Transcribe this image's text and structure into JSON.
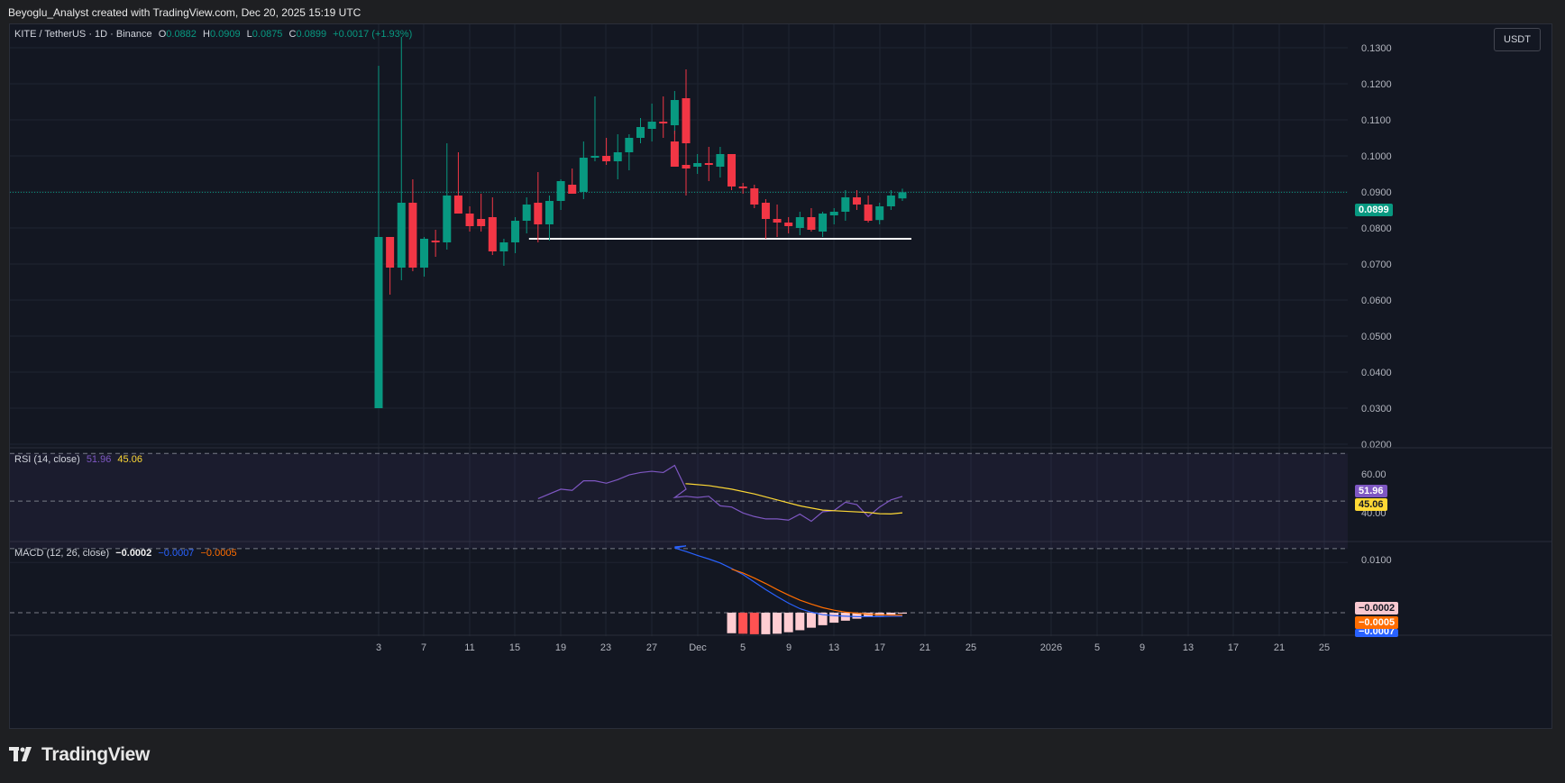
{
  "header": {
    "caption": "Beyoglu_Analyst created with TradingView.com, Dec 20, 2025 15:19 UTC"
  },
  "symbol": {
    "name": "KITE / TetherUS · 1D · Binance",
    "o_label": "O",
    "o": "0.0882",
    "h_label": "H",
    "h": "0.0909",
    "l_label": "L",
    "l": "0.0875",
    "c_label": "C",
    "c": "0.0899",
    "change": "+0.0017 (+1.93%)"
  },
  "unit_button": "USDT",
  "last_price_tag": "0.0899",
  "rsi": {
    "label": "RSI (14, close)",
    "value": "51.96",
    "ma": "45.06",
    "tick_label": "60.00",
    "tick_low": "40.00"
  },
  "macd": {
    "label": "MACD (12, 26, close)",
    "hist": "−0.0002",
    "macd": "−0.0007",
    "signal": "−0.0005",
    "tick_label": "0.0100",
    "tag_hist": "−0.0002",
    "tag_signal": "−0.0005",
    "tag_macd": "−0.0007"
  },
  "brand": "TradingView",
  "colors": {
    "up": "#089981",
    "down": "#f23645",
    "rsi": "#7e57c2",
    "rsi_ma": "#fdd835",
    "macd": "#2962ff",
    "signal": "#ff6d00",
    "bg": "#131722"
  },
  "chart_data": {
    "type": "candlestick",
    "x_ticks": [
      "3",
      "7",
      "11",
      "15",
      "19",
      "23",
      "27",
      "Dec",
      "5",
      "9",
      "13",
      "17",
      "21",
      "25",
      "2026",
      "5",
      "9",
      "13",
      "17",
      "21",
      "25"
    ],
    "y_ticks": [
      "0.1300",
      "0.1200",
      "0.1100",
      "0.1000",
      "0.0900",
      "0.0800",
      "0.0700",
      "0.0600",
      "0.0500",
      "0.0400",
      "0.0300",
      "0.0200"
    ],
    "ylim": [
      0.019,
      0.1365
    ],
    "support_level": 0.077,
    "candles": [
      {
        "date": "Nov 3",
        "o": 0.03,
        "h": 0.125,
        "l": 0.03,
        "c": 0.0775
      },
      {
        "date": "Nov 4",
        "o": 0.0775,
        "h": 0.0775,
        "l": 0.0615,
        "c": 0.069
      },
      {
        "date": "Nov 5",
        "o": 0.069,
        "h": 0.133,
        "l": 0.0655,
        "c": 0.087
      },
      {
        "date": "Nov 6",
        "o": 0.087,
        "h": 0.0935,
        "l": 0.068,
        "c": 0.069
      },
      {
        "date": "Nov 7",
        "o": 0.069,
        "h": 0.0775,
        "l": 0.0665,
        "c": 0.077
      },
      {
        "date": "Nov 8",
        "o": 0.0765,
        "h": 0.0795,
        "l": 0.072,
        "c": 0.076
      },
      {
        "date": "Nov 9",
        "o": 0.076,
        "h": 0.1035,
        "l": 0.074,
        "c": 0.089
      },
      {
        "date": "Nov 10",
        "o": 0.089,
        "h": 0.101,
        "l": 0.084,
        "c": 0.084
      },
      {
        "date": "Nov 11",
        "o": 0.084,
        "h": 0.086,
        "l": 0.079,
        "c": 0.0805
      },
      {
        "date": "Nov 12",
        "o": 0.0825,
        "h": 0.0895,
        "l": 0.079,
        "c": 0.0805
      },
      {
        "date": "Nov 13",
        "o": 0.083,
        "h": 0.0885,
        "l": 0.0725,
        "c": 0.0735
      },
      {
        "date": "Nov 14",
        "o": 0.0735,
        "h": 0.077,
        "l": 0.0695,
        "c": 0.076
      },
      {
        "date": "Nov 15",
        "o": 0.076,
        "h": 0.083,
        "l": 0.073,
        "c": 0.082
      },
      {
        "date": "Nov 16",
        "o": 0.082,
        "h": 0.0885,
        "l": 0.0785,
        "c": 0.0865
      },
      {
        "date": "Nov 17",
        "o": 0.087,
        "h": 0.0955,
        "l": 0.076,
        "c": 0.081
      },
      {
        "date": "Nov 18",
        "o": 0.081,
        "h": 0.089,
        "l": 0.0765,
        "c": 0.0875
      },
      {
        "date": "Nov 19",
        "o": 0.0875,
        "h": 0.0935,
        "l": 0.085,
        "c": 0.093
      },
      {
        "date": "Nov 20",
        "o": 0.092,
        "h": 0.0965,
        "l": 0.0895,
        "c": 0.0895
      },
      {
        "date": "Nov 21",
        "o": 0.09,
        "h": 0.104,
        "l": 0.088,
        "c": 0.0995
      },
      {
        "date": "Nov 22",
        "o": 0.0995,
        "h": 0.1165,
        "l": 0.0985,
        "c": 0.1
      },
      {
        "date": "Nov 23",
        "o": 0.1,
        "h": 0.105,
        "l": 0.0975,
        "c": 0.0985
      },
      {
        "date": "Nov 24",
        "o": 0.0985,
        "h": 0.106,
        "l": 0.0935,
        "c": 0.101
      },
      {
        "date": "Nov 25",
        "o": 0.101,
        "h": 0.106,
        "l": 0.096,
        "c": 0.105
      },
      {
        "date": "Nov 26",
        "o": 0.105,
        "h": 0.1105,
        "l": 0.1035,
        "c": 0.108
      },
      {
        "date": "Nov 27",
        "o": 0.1075,
        "h": 0.1145,
        "l": 0.104,
        "c": 0.1095
      },
      {
        "date": "Nov 28",
        "o": 0.1095,
        "h": 0.1165,
        "l": 0.105,
        "c": 0.109
      },
      {
        "date": "Nov 29",
        "o": 0.1085,
        "h": 0.118,
        "l": 0.106,
        "c": 0.1155
      },
      {
        "date": "Nov 30",
        "o": 0.116,
        "h": 0.124,
        "l": 0.102,
        "c": 0.1035
      },
      {
        "date": "Dec 1",
        "o": 0.104,
        "h": 0.107,
        "l": 0.097,
        "c": 0.097
      },
      {
        "date": "Dec 2",
        "o": 0.0975,
        "h": 0.1035,
        "l": 0.089,
        "c": 0.0965
      },
      {
        "date": "Dec 3",
        "o": 0.097,
        "h": 0.1005,
        "l": 0.095,
        "c": 0.098
      },
      {
        "date": "Dec 4",
        "o": 0.098,
        "h": 0.1025,
        "l": 0.093,
        "c": 0.0975
      },
      {
        "date": "Dec 5",
        "o": 0.097,
        "h": 0.1025,
        "l": 0.094,
        "c": 0.1005
      },
      {
        "date": "Dec 6",
        "o": 0.1005,
        "h": 0.1005,
        "l": 0.0905,
        "c": 0.0915
      },
      {
        "date": "Dec 7",
        "o": 0.0915,
        "h": 0.0925,
        "l": 0.0895,
        "c": 0.091
      },
      {
        "date": "Dec 8",
        "o": 0.091,
        "h": 0.092,
        "l": 0.0855,
        "c": 0.0865
      },
      {
        "date": "Dec 9",
        "o": 0.087,
        "h": 0.088,
        "l": 0.077,
        "c": 0.0825
      },
      {
        "date": "Dec 10",
        "o": 0.0825,
        "h": 0.0865,
        "l": 0.0775,
        "c": 0.0815
      },
      {
        "date": "Dec 11",
        "o": 0.0815,
        "h": 0.083,
        "l": 0.0785,
        "c": 0.0805
      },
      {
        "date": "Dec 12",
        "o": 0.08,
        "h": 0.0845,
        "l": 0.078,
        "c": 0.083
      },
      {
        "date": "Dec 13",
        "o": 0.083,
        "h": 0.0855,
        "l": 0.079,
        "c": 0.0795
      },
      {
        "date": "Dec 14",
        "o": 0.079,
        "h": 0.0845,
        "l": 0.0775,
        "c": 0.084
      },
      {
        "date": "Dec 15",
        "o": 0.0835,
        "h": 0.0855,
        "l": 0.081,
        "c": 0.0845
      },
      {
        "date": "Dec 16",
        "o": 0.0845,
        "h": 0.0905,
        "l": 0.082,
        "c": 0.0885
      },
      {
        "date": "Dec 17",
        "o": 0.0885,
        "h": 0.0905,
        "l": 0.085,
        "c": 0.0865
      },
      {
        "date": "Dec 18",
        "o": 0.0865,
        "h": 0.089,
        "l": 0.0815,
        "c": 0.082
      },
      {
        "date": "Dec 19",
        "o": 0.0822,
        "h": 0.087,
        "l": 0.081,
        "c": 0.086
      },
      {
        "date": "Dec 20",
        "o": 0.086,
        "h": 0.0905,
        "l": 0.085,
        "c": 0.089
      },
      {
        "date": "Dec 21",
        "o": 0.0882,
        "h": 0.0909,
        "l": 0.0875,
        "c": 0.0899
      }
    ],
    "rsi_series": [
      {
        "date": "Nov 17",
        "v": 51.0
      },
      {
        "date": "Nov 19",
        "v": 55.0
      },
      {
        "date": "Nov 20",
        "v": 54.5
      },
      {
        "date": "Nov 21",
        "v": 58.5
      },
      {
        "date": "Nov 22",
        "v": 58.5
      },
      {
        "date": "Nov 23",
        "v": 57.5
      },
      {
        "date": "Nov 24",
        "v": 59.0
      },
      {
        "date": "Nov 25",
        "v": 61.0
      },
      {
        "date": "Nov 26",
        "v": 62.0
      },
      {
        "date": "Nov 27",
        "v": 62.5
      },
      {
        "date": "Nov 28",
        "v": 62.0
      },
      {
        "date": "Nov 29",
        "v": 65.0
      },
      {
        "date": "Nov 30",
        "v": 55.0
      },
      {
        "date": "Dec 1",
        "v": 51.5
      },
      {
        "date": "Dec 2",
        "v": 52.0
      },
      {
        "date": "Dec 3",
        "v": 51.5
      },
      {
        "date": "Dec 4",
        "v": 52.0
      },
      {
        "date": "Dec 5",
        "v": 48.0
      },
      {
        "date": "Dec 6",
        "v": 47.5
      },
      {
        "date": "Dec 7",
        "v": 45.0
      },
      {
        "date": "Dec 8",
        "v": 43.5
      },
      {
        "date": "Dec 9",
        "v": 42.5
      },
      {
        "date": "Dec 10",
        "v": 42.5
      },
      {
        "date": "Dec 11",
        "v": 42.0
      },
      {
        "date": "Dec 12",
        "v": 44.5
      },
      {
        "date": "Dec 13",
        "v": 41.5
      },
      {
        "date": "Dec 14",
        "v": 45.5
      },
      {
        "date": "Dec 15",
        "v": 46.0
      },
      {
        "date": "Dec 16",
        "v": 49.5
      },
      {
        "date": "Dec 17",
        "v": 48.5
      },
      {
        "date": "Dec 18",
        "v": 43.5
      },
      {
        "date": "Dec 19",
        "v": 47.5
      },
      {
        "date": "Dec 20",
        "v": 50.5
      },
      {
        "date": "Dec 21",
        "v": 51.96
      }
    ],
    "rsi_ma_series": [
      {
        "date": "Nov 30",
        "v": 57.5
      },
      {
        "date": "Dec 2",
        "v": 57.3
      },
      {
        "date": "Dec 4",
        "v": 56.5
      },
      {
        "date": "Dec 6",
        "v": 55.0
      },
      {
        "date": "Dec 8",
        "v": 53.0
      },
      {
        "date": "Dec 10",
        "v": 50.5
      },
      {
        "date": "Dec 12",
        "v": 48.0
      },
      {
        "date": "Dec 14",
        "v": 46.2
      },
      {
        "date": "Dec 16",
        "v": 45.7
      },
      {
        "date": "Dec 18",
        "v": 45.2
      },
      {
        "date": "Dec 19",
        "v": 44.7
      },
      {
        "date": "Dec 20",
        "v": 44.6
      },
      {
        "date": "Dec 21",
        "v": 45.06
      }
    ],
    "rsi_ylim": [
      33,
      72
    ],
    "rsi_bands": [
      70,
      50,
      30
    ],
    "macd_series": [
      {
        "date": "Nov 29",
        "v": 0.0131
      },
      {
        "date": "Nov 30",
        "v": 0.0133
      },
      {
        "date": "Dec 1",
        "v": 0.0129
      },
      {
        "date": "Dec 2",
        "v": 0.0122
      },
      {
        "date": "Dec 3",
        "v": 0.0114
      },
      {
        "date": "Dec 4",
        "v": 0.0107
      },
      {
        "date": "Dec 5",
        "v": 0.0099
      },
      {
        "date": "Dec 6",
        "v": 0.0088
      },
      {
        "date": "Dec 7",
        "v": 0.0076
      },
      {
        "date": "Dec 8",
        "v": 0.0061
      },
      {
        "date": "Dec 9",
        "v": 0.0046
      },
      {
        "date": "Dec 10",
        "v": 0.0032
      },
      {
        "date": "Dec 11",
        "v": 0.0019
      },
      {
        "date": "Dec 12",
        "v": 0.0008
      },
      {
        "date": "Dec 13",
        "v": 0.0001
      },
      {
        "date": "Dec 14",
        "v": -0.0004
      },
      {
        "date": "Dec 15",
        "v": -0.0006
      },
      {
        "date": "Dec 16",
        "v": -0.0007
      },
      {
        "date": "Dec 17",
        "v": -0.0008
      },
      {
        "date": "Dec 18",
        "v": -0.0008
      },
      {
        "date": "Dec 19",
        "v": -0.0008
      },
      {
        "date": "Dec 20",
        "v": -0.0007
      },
      {
        "date": "Dec 21",
        "v": -0.0007
      }
    ],
    "signal_series": [
      {
        "date": "Dec 6",
        "v": 0.0087
      },
      {
        "date": "Dec 7",
        "v": 0.0079
      },
      {
        "date": "Dec 8",
        "v": 0.0069
      },
      {
        "date": "Dec 9",
        "v": 0.0058
      },
      {
        "date": "Dec 10",
        "v": 0.0046
      },
      {
        "date": "Dec 11",
        "v": 0.0035
      },
      {
        "date": "Dec 12",
        "v": 0.0025
      },
      {
        "date": "Dec 13",
        "v": 0.0017
      },
      {
        "date": "Dec 14",
        "v": 0.001
      },
      {
        "date": "Dec 15",
        "v": 0.0005
      },
      {
        "date": "Dec 16",
        "v": 0.0001
      },
      {
        "date": "Dec 17",
        "v": -0.0001
      },
      {
        "date": "Dec 18",
        "v": -0.0003
      },
      {
        "date": "Dec 19",
        "v": -0.0004
      },
      {
        "date": "Dec 20",
        "v": -0.0005
      },
      {
        "date": "Dec 21",
        "v": -0.0005
      }
    ],
    "macd_hist": [
      {
        "date": "Dec 6",
        "v": -0.0041
      },
      {
        "date": "Dec 7",
        "v": -0.0042
      },
      {
        "date": "Dec 8",
        "v": -0.0043
      },
      {
        "date": "Dec 9",
        "v": -0.0043
      },
      {
        "date": "Dec 10",
        "v": -0.0042
      },
      {
        "date": "Dec 11",
        "v": -0.0039
      },
      {
        "date": "Dec 12",
        "v": -0.0035
      },
      {
        "date": "Dec 13",
        "v": -0.003
      },
      {
        "date": "Dec 14",
        "v": -0.0025
      },
      {
        "date": "Dec 15",
        "v": -0.002
      },
      {
        "date": "Dec 16",
        "v": -0.0016
      },
      {
        "date": "Dec 17",
        "v": -0.0012
      },
      {
        "date": "Dec 18",
        "v": -0.0009
      },
      {
        "date": "Dec 19",
        "v": -0.0006
      },
      {
        "date": "Dec 20",
        "v": -0.0004
      },
      {
        "date": "Dec 21",
        "v": -0.0002
      }
    ],
    "macd_ylim": [
      -0.0045,
      0.014
    ]
  }
}
